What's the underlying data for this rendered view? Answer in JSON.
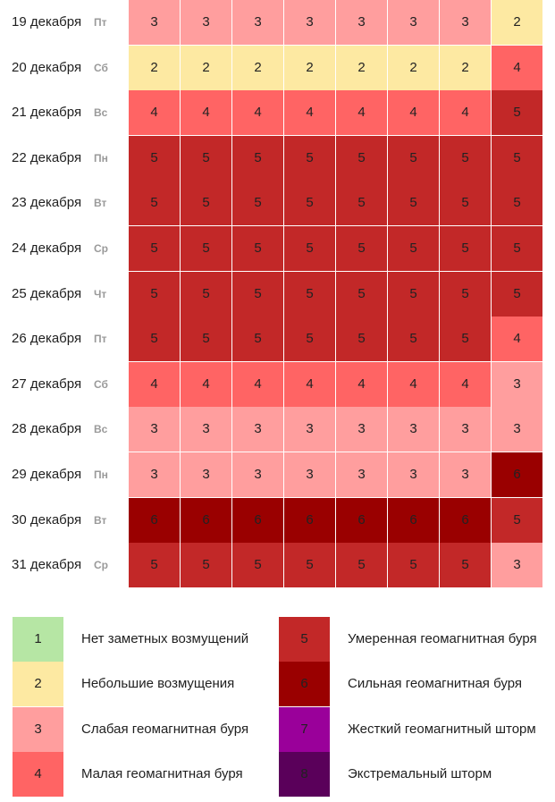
{
  "chart_data": {
    "type": "heatmap",
    "row_labels": [
      {
        "date": "19 декабря",
        "dow": "Пт"
      },
      {
        "date": "20 декабря",
        "dow": "Сб"
      },
      {
        "date": "21 декабря",
        "dow": "Вс"
      },
      {
        "date": "22 декабря",
        "dow": "Пн"
      },
      {
        "date": "23 декабря",
        "dow": "Вт"
      },
      {
        "date": "24 декабря",
        "dow": "Ср"
      },
      {
        "date": "25 декабря",
        "dow": "Чт"
      },
      {
        "date": "26 декабря",
        "dow": "Пт"
      },
      {
        "date": "27 декабря",
        "dow": "Сб"
      },
      {
        "date": "28 декабря",
        "dow": "Вс"
      },
      {
        "date": "29 декабря",
        "dow": "Пн"
      },
      {
        "date": "30 декабря",
        "dow": "Вт"
      },
      {
        "date": "31 декабря",
        "dow": "Ср"
      }
    ],
    "values": [
      [
        3,
        3,
        3,
        3,
        3,
        3,
        3,
        2
      ],
      [
        2,
        2,
        2,
        2,
        2,
        2,
        2,
        4
      ],
      [
        4,
        4,
        4,
        4,
        4,
        4,
        4,
        5
      ],
      [
        5,
        5,
        5,
        5,
        5,
        5,
        5,
        5
      ],
      [
        5,
        5,
        5,
        5,
        5,
        5,
        5,
        5
      ],
      [
        5,
        5,
        5,
        5,
        5,
        5,
        5,
        5
      ],
      [
        5,
        5,
        5,
        5,
        5,
        5,
        5,
        5
      ],
      [
        5,
        5,
        5,
        5,
        5,
        5,
        5,
        4
      ],
      [
        4,
        4,
        4,
        4,
        4,
        4,
        4,
        3
      ],
      [
        3,
        3,
        3,
        3,
        3,
        3,
        3,
        3
      ],
      [
        3,
        3,
        3,
        3,
        3,
        3,
        3,
        6
      ],
      [
        6,
        6,
        6,
        6,
        6,
        6,
        6,
        5
      ],
      [
        5,
        5,
        5,
        5,
        5,
        5,
        5,
        3
      ]
    ]
  },
  "level_colors": {
    "1": "#b6e6a4",
    "2": "#fde9a2",
    "3": "#ff9e9e",
    "4": "#ff6464",
    "5": "#c22828",
    "6": "#9a0000",
    "7": "#9a009a",
    "8": "#5a005a"
  },
  "legend": [
    {
      "level": "1",
      "label": "Нет заметных возмущений"
    },
    {
      "level": "2",
      "label": "Небольшие возмущения"
    },
    {
      "level": "3",
      "label": "Слабая геомагнитная буря"
    },
    {
      "level": "4",
      "label": "Малая геомагнитная буря"
    },
    {
      "level": "5",
      "label": "Умеренная геомагнитная буря"
    },
    {
      "level": "6",
      "label": "Сильная геомагнитная буря"
    },
    {
      "level": "7",
      "label": "Жесткий геомагнитный шторм"
    },
    {
      "level": "8",
      "label": "Экстремальный шторм"
    }
  ]
}
